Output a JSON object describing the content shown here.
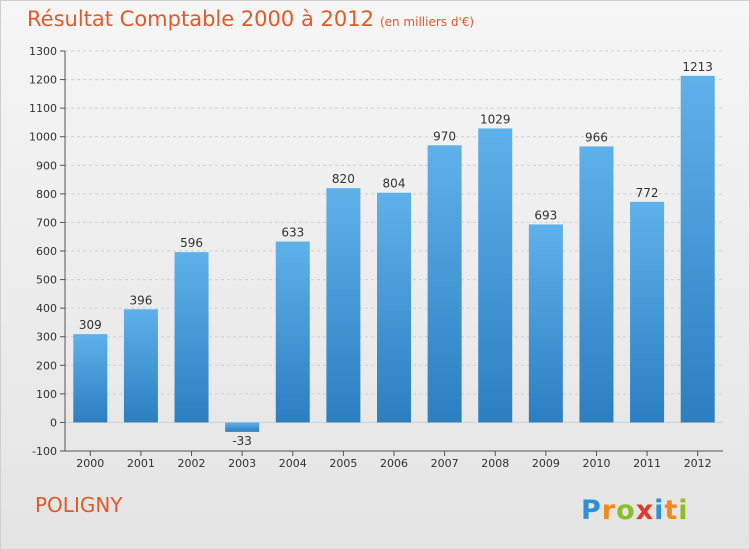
{
  "header": {
    "title": "Résultat Comptable 2000 à 2012",
    "subtitle": "(en milliers d'€)"
  },
  "footer": {
    "commune": "POLIGNY",
    "logo_text": "Proxiti"
  },
  "colors": {
    "title": "#e15a2a",
    "bar_light": "#5fb1ea",
    "bar_dark": "#2b7fc1",
    "grid": "#d0d0d0"
  },
  "chart_data": {
    "type": "bar",
    "title": "Résultat Comptable 2000 à 2012",
    "subtitle": "(en milliers d'€)",
    "categories": [
      "2000",
      "2001",
      "2002",
      "2003",
      "2004",
      "2005",
      "2006",
      "2007",
      "2008",
      "2009",
      "2010",
      "2011",
      "2012"
    ],
    "values": [
      309,
      396,
      596,
      -33,
      633,
      820,
      804,
      970,
      1029,
      693,
      966,
      772,
      1213
    ],
    "xlabel": "",
    "ylabel": "",
    "ylim": [
      -100,
      1300
    ],
    "yticks": [
      -100,
      0,
      100,
      200,
      300,
      400,
      500,
      600,
      700,
      800,
      900,
      1000,
      1100,
      1200,
      1300
    ],
    "grid": true,
    "legend": "none",
    "data_labels": true
  }
}
